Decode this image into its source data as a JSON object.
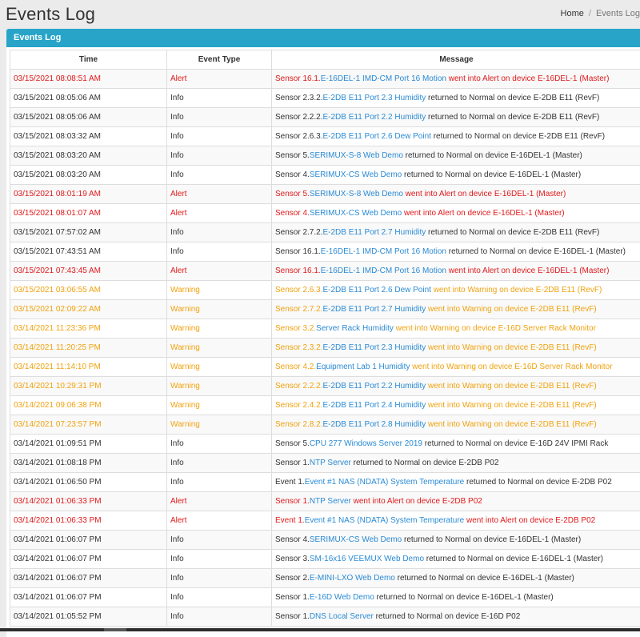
{
  "header": {
    "title": "Events Log",
    "breadcrumb": {
      "home": "Home",
      "separator": "/",
      "current": "Events Log"
    }
  },
  "panel": {
    "title": "Events Log"
  },
  "table": {
    "columns": [
      "Time",
      "Event Type",
      "Message"
    ],
    "rows": [
      {
        "time": "03/15/2021 08:08:51 AM",
        "type": "Alert",
        "prefix": "Sensor 16.1.",
        "link": "E-16DEL-1 IMD-CM Port 16 Motion",
        "suffix": " went into Alert on device E-16DEL-1 (Master)"
      },
      {
        "time": "03/15/2021 08:05:06 AM",
        "type": "Info",
        "prefix": "Sensor 2.3.2.",
        "link": "E-2DB E11 Port 2.3 Humidity",
        "suffix": " returned to Normal on device E-2DB E11 (RevF)"
      },
      {
        "time": "03/15/2021 08:05:06 AM",
        "type": "Info",
        "prefix": "Sensor 2.2.2.",
        "link": "E-2DB E11 Port 2.2 Humidity",
        "suffix": " returned to Normal on device E-2DB E11 (RevF)"
      },
      {
        "time": "03/15/2021 08:03:32 AM",
        "type": "Info",
        "prefix": "Sensor 2.6.3.",
        "link": "E-2DB E11 Port 2.6 Dew Point",
        "suffix": " returned to Normal on device E-2DB E11 (RevF)"
      },
      {
        "time": "03/15/2021 08:03:20 AM",
        "type": "Info",
        "prefix": "Sensor 5.",
        "link": "SERIMUX-S-8 Web Demo",
        "suffix": " returned to Normal on device E-16DEL-1 (Master)"
      },
      {
        "time": "03/15/2021 08:03:20 AM",
        "type": "Info",
        "prefix": "Sensor 4.",
        "link": "SERIMUX-CS Web Demo",
        "suffix": " returned to Normal on device E-16DEL-1 (Master)"
      },
      {
        "time": "03/15/2021 08:01:19 AM",
        "type": "Alert",
        "prefix": "Sensor 5.",
        "link": "SERIMUX-S-8 Web Demo",
        "suffix": " went into Alert on device E-16DEL-1 (Master)"
      },
      {
        "time": "03/15/2021 08:01:07 AM",
        "type": "Alert",
        "prefix": "Sensor 4.",
        "link": "SERIMUX-CS Web Demo",
        "suffix": " went into Alert on device E-16DEL-1 (Master)"
      },
      {
        "time": "03/15/2021 07:57:02 AM",
        "type": "Info",
        "prefix": "Sensor 2.7.2.",
        "link": "E-2DB E11 Port 2.7 Humidity",
        "suffix": " returned to Normal on device E-2DB E11 (RevF)"
      },
      {
        "time": "03/15/2021 07:43:51 AM",
        "type": "Info",
        "prefix": "Sensor 16.1.",
        "link": "E-16DEL-1 IMD-CM Port 16 Motion",
        "suffix": " returned to Normal on device E-16DEL-1 (Master)"
      },
      {
        "time": "03/15/2021 07:43:45 AM",
        "type": "Alert",
        "prefix": "Sensor 16.1.",
        "link": "E-16DEL-1 IMD-CM Port 16 Motion",
        "suffix": " went into Alert on device E-16DEL-1 (Master)"
      },
      {
        "time": "03/15/2021 03:06:55 AM",
        "type": "Warning",
        "prefix": "Sensor 2.6.3.",
        "link": "E-2DB E11 Port 2.6 Dew Point",
        "suffix": " went into Warning on device E-2DB E11 (RevF)"
      },
      {
        "time": "03/15/2021 02:09:22 AM",
        "type": "Warning",
        "prefix": "Sensor 2.7.2.",
        "link": "E-2DB E11 Port 2.7 Humidity",
        "suffix": " went into Warning on device E-2DB E11 (RevF)"
      },
      {
        "time": "03/14/2021 11:23:36 PM",
        "type": "Warning",
        "prefix": "Sensor 3.2.",
        "link": "Server Rack Humidity",
        "suffix": " went into Warning on device E-16D Server Rack Monitor"
      },
      {
        "time": "03/14/2021 11:20:25 PM",
        "type": "Warning",
        "prefix": "Sensor 2.3.2.",
        "link": "E-2DB E11 Port 2.3 Humidity",
        "suffix": " went into Warning on device E-2DB E11 (RevF)"
      },
      {
        "time": "03/14/2021 11:14:10 PM",
        "type": "Warning",
        "prefix": "Sensor 4.2.",
        "link": "Equipment Lab 1 Humidity",
        "suffix": " went into Warning on device E-16D Server Rack Monitor"
      },
      {
        "time": "03/14/2021 10:29:31 PM",
        "type": "Warning",
        "prefix": "Sensor 2.2.2.",
        "link": "E-2DB E11 Port 2.2 Humidity",
        "suffix": " went into Warning on device E-2DB E11 (RevF)"
      },
      {
        "time": "03/14/2021 09:06:38 PM",
        "type": "Warning",
        "prefix": "Sensor 2.4.2.",
        "link": "E-2DB E11 Port 2.4 Humidity",
        "suffix": " went into Warning on device E-2DB E11 (RevF)"
      },
      {
        "time": "03/14/2021 07:23:57 PM",
        "type": "Warning",
        "prefix": "Sensor 2.8.2.",
        "link": "E-2DB E11 Port 2.8 Humidity",
        "suffix": " went into Warning on device E-2DB E11 (RevF)"
      },
      {
        "time": "03/14/2021 01:09:51 PM",
        "type": "Info",
        "prefix": "Sensor 5.",
        "link": "CPU 277 Windows Server 2019",
        "suffix": " returned to Normal on device E-16D 24V IPMI Rack"
      },
      {
        "time": "03/14/2021 01:08:18 PM",
        "type": "Info",
        "prefix": "Sensor 1.",
        "link": "NTP Server",
        "suffix": " returned to Normal on device E-2DB P02"
      },
      {
        "time": "03/14/2021 01:06:50 PM",
        "type": "Info",
        "prefix": "Event 1.",
        "link": "Event #1 NAS (NDATA) System Temperature",
        "suffix": " returned to Normal on device E-2DB P02"
      },
      {
        "time": "03/14/2021 01:06:33 PM",
        "type": "Alert",
        "prefix": "Sensor 1.",
        "link": "NTP Server",
        "suffix": " went into Alert on device E-2DB P02"
      },
      {
        "time": "03/14/2021 01:06:33 PM",
        "type": "Alert",
        "prefix": "Event 1.",
        "link": "Event #1 NAS (NDATA) System Temperature",
        "suffix": " went into Alert on device E-2DB P02"
      },
      {
        "time": "03/14/2021 01:06:07 PM",
        "type": "Info",
        "prefix": "Sensor 4.",
        "link": "SERIMUX-CS Web Demo",
        "suffix": " returned to Normal on device E-16DEL-1 (Master)"
      },
      {
        "time": "03/14/2021 01:06:07 PM",
        "type": "Info",
        "prefix": "Sensor 3.",
        "link": "SM-16x16 VEEMUX Web Demo",
        "suffix": " returned to Normal on device E-16DEL-1 (Master)"
      },
      {
        "time": "03/14/2021 01:06:07 PM",
        "type": "Info",
        "prefix": "Sensor 2.",
        "link": "E-MINI-LXO Web Demo",
        "suffix": " returned to Normal on device E-16DEL-1 (Master)"
      },
      {
        "time": "03/14/2021 01:06:07 PM",
        "type": "Info",
        "prefix": "Sensor 1.",
        "link": "E-16D Web Demo",
        "suffix": " returned to Normal on device E-16DEL-1 (Master)"
      },
      {
        "time": "03/14/2021 01:05:52 PM",
        "type": "Info",
        "prefix": "Sensor 1.",
        "link": "DNS Local Server",
        "suffix": " returned to Normal on device E-16D P02"
      }
    ]
  },
  "colors": {
    "accent": "#27a4c8",
    "alert": "#e0191b",
    "warning": "#f0a20f",
    "info": "#333333",
    "link": "#2a8ad4"
  }
}
